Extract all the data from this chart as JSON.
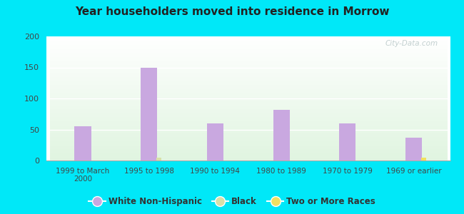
{
  "title": "Year householders moved into residence in Morrow",
  "categories": [
    "1999 to March\n2000",
    "1995 to 1998",
    "1990 to 1994",
    "1980 to 1989",
    "1970 to 1979",
    "1969 or earlier"
  ],
  "white_non_hispanic": [
    55,
    150,
    60,
    82,
    60,
    37
  ],
  "black": [
    0,
    5,
    0,
    0,
    0,
    0
  ],
  "two_or_more_races": [
    0,
    0,
    0,
    0,
    0,
    5
  ],
  "white_color": "#c9a8e0",
  "black_color": "#d8e0a8",
  "two_more_color": "#f0e060",
  "background_outer": "#00e8f8",
  "plot_bg_top": "#f5fff5",
  "plot_bg_bottom": "#d8f0d0",
  "ylim": [
    0,
    200
  ],
  "yticks": [
    0,
    50,
    100,
    150,
    200
  ],
  "bar_width": 0.25,
  "small_bar_width": 0.08,
  "legend_labels": [
    "White Non-Hispanic",
    "Black",
    "Two or More Races"
  ]
}
